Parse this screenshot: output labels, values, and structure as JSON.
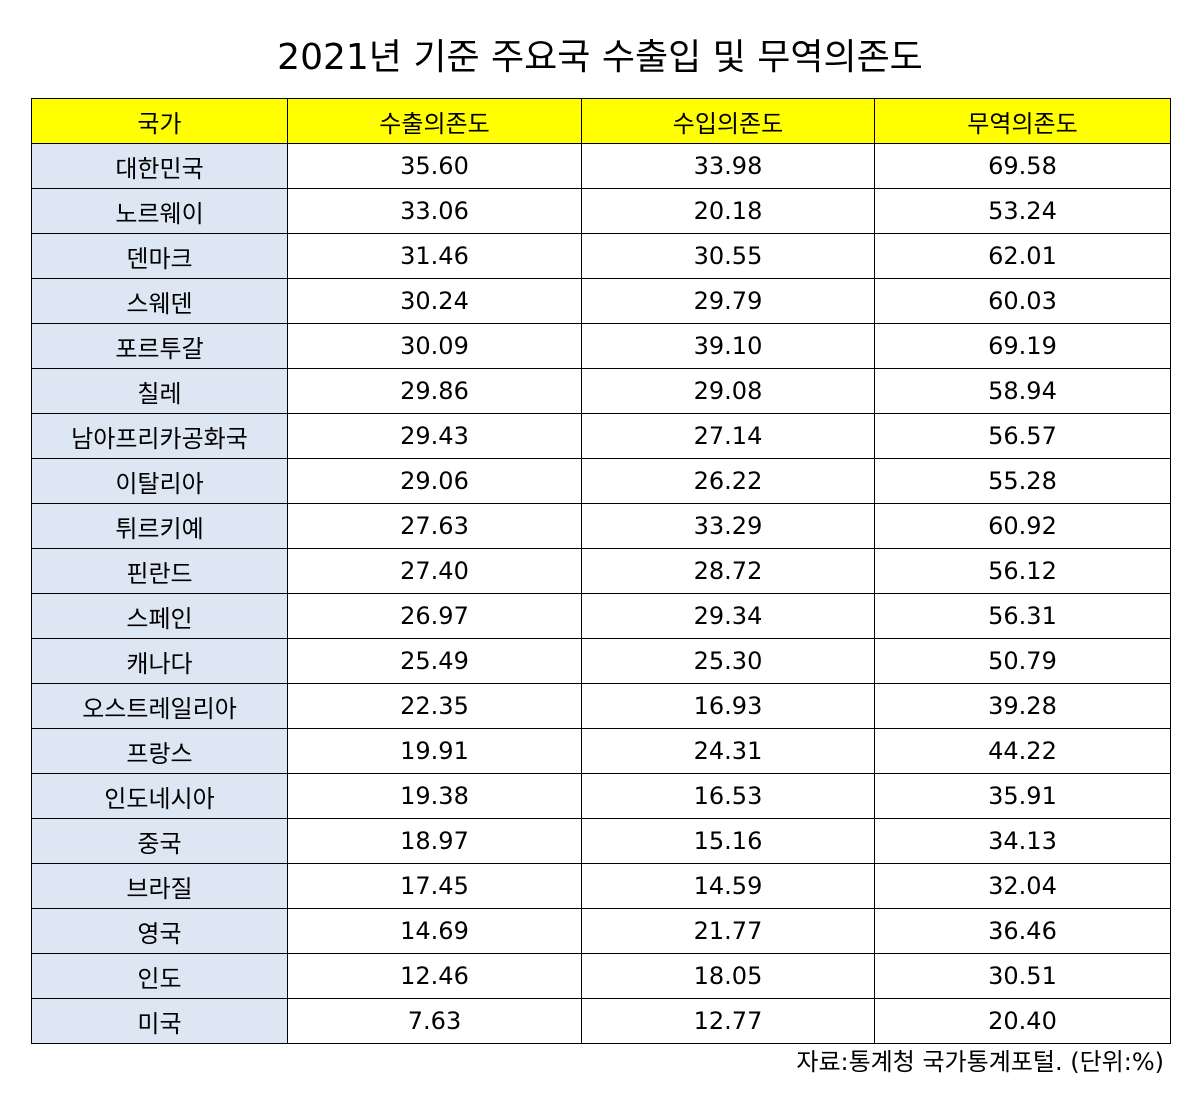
{
  "title": "2021년 기준 주요국 수출입 및 무역의존도",
  "headers": [
    "국가",
    "수출의존도",
    "수입의존도",
    "무역의존도"
  ],
  "rows": [
    [
      "대한민국",
      "35.60",
      "33.98",
      "69.58"
    ],
    [
      "노르웨이",
      "33.06",
      "20.18",
      "53.24"
    ],
    [
      "덴마크",
      "31.46",
      "30.55",
      "62.01"
    ],
    [
      "스웨덴",
      "30.24",
      "29.79",
      "60.03"
    ],
    [
      "포르투갈",
      "30.09",
      "39.10",
      "69.19"
    ],
    [
      "칠레",
      "29.86",
      "29.08",
      "58.94"
    ],
    [
      "남아프리카공화국",
      "29.43",
      "27.14",
      "56.57"
    ],
    [
      "이탈리아",
      "29.06",
      "26.22",
      "55.28"
    ],
    [
      "튀르키예",
      "27.63",
      "33.29",
      "60.92"
    ],
    [
      "핀란드",
      "27.40",
      "28.72",
      "56.12"
    ],
    [
      "스페인",
      "26.97",
      "29.34",
      "56.31"
    ],
    [
      "캐나다",
      "25.49",
      "25.30",
      "50.79"
    ],
    [
      "오스트레일리아",
      "22.35",
      "16.93",
      "39.28"
    ],
    [
      "프랑스",
      "19.91",
      "24.31",
      "44.22"
    ],
    [
      "인도네시아",
      "19.38",
      "16.53",
      "35.91"
    ],
    [
      "중국",
      "18.97",
      "15.16",
      "34.13"
    ],
    [
      "브라질",
      "17.45",
      "14.59",
      "32.04"
    ],
    [
      "영국",
      "14.69",
      "21.77",
      "36.46"
    ],
    [
      "인도",
      "12.46",
      "18.05",
      "30.51"
    ],
    [
      "미국",
      "7.63",
      "12.77",
      "20.40"
    ]
  ],
  "source": "자료:통계청 국가통계포털. (단위:%)",
  "colors": {
    "header_bg": "#ffff00",
    "country_bg": "#dde7f4",
    "border": "#000000"
  }
}
